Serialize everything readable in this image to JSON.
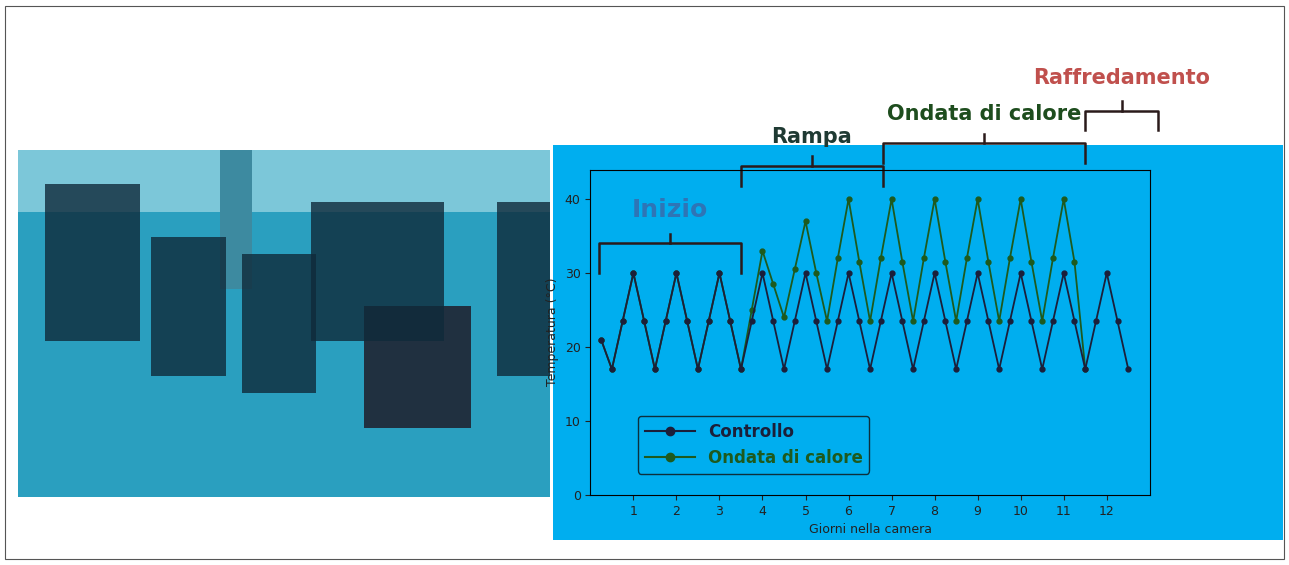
{
  "chart_data": {
    "type": "line",
    "x_label": "Giorni nella camera",
    "y_label": "Temperatura (°C)",
    "x": [
      0.25,
      0.5,
      0.75,
      1.0,
      1.25,
      1.5,
      1.75,
      2.0,
      2.25,
      2.5,
      2.75,
      3.0,
      3.25,
      3.5,
      3.75,
      4.0,
      4.25,
      4.5,
      4.75,
      5.0,
      5.25,
      5.5,
      5.75,
      6.0,
      6.25,
      6.5,
      6.75,
      7.0,
      7.25,
      7.5,
      7.75,
      8.0,
      8.25,
      8.5,
      8.75,
      9.0,
      9.25,
      9.5,
      9.75,
      10.0,
      10.25,
      10.5,
      10.75,
      11.0,
      11.25,
      11.5,
      11.75,
      12.0,
      12.25,
      12.5
    ],
    "series": [
      {
        "name": "Controllo",
        "color": "#1b1f3a",
        "marker": "o",
        "line_style": "solid",
        "values": [
          21,
          17,
          23.5,
          30,
          23.5,
          17,
          23.5,
          30,
          23.5,
          17,
          23.5,
          30,
          23.5,
          17,
          23.5,
          30,
          23.5,
          17,
          23.5,
          30,
          23.5,
          17,
          23.5,
          30,
          23.5,
          17,
          23.5,
          30,
          23.5,
          17,
          23.5,
          30,
          23.5,
          17,
          23.5,
          30,
          23.5,
          17,
          23.5,
          30,
          23.5,
          17,
          23.5,
          30,
          23.5,
          17,
          23.5,
          30,
          23.5,
          17
        ]
      },
      {
        "name": "Ondata di calore",
        "color": "#1e5a1e",
        "marker": "o",
        "line_style": "solid",
        "values": [
          21,
          17,
          23.5,
          30,
          23.5,
          17,
          23.5,
          30,
          23.5,
          17,
          23.5,
          30,
          23.5,
          17,
          25,
          33,
          28.5,
          24,
          30.5,
          37,
          30,
          23.5,
          32,
          40,
          31.5,
          23.5,
          32,
          40,
          31.5,
          23.5,
          32,
          40,
          31.5,
          23.5,
          32,
          40,
          31.5,
          23.5,
          32,
          40,
          31.5,
          23.5,
          32,
          40,
          31.5,
          17,
          null,
          null,
          null,
          null
        ]
      }
    ],
    "xlim": [
      0,
      13
    ],
    "xticks": [
      1,
      2,
      3,
      4,
      5,
      6,
      7,
      8,
      9,
      10,
      11,
      12
    ],
    "ylim": [
      0,
      44
    ],
    "yticks": [
      0,
      10,
      20,
      30,
      40
    ],
    "grid": false,
    "legend": "lower left",
    "phases": [
      {
        "label": "Inizio",
        "color": "#2e75b6",
        "start": 0.2,
        "end": 3.5
      },
      {
        "label": "Rampa",
        "color": "#1f3a33",
        "start": 3.5,
        "end": 6.8
      },
      {
        "label": "Ondata di calore",
        "color": "#1e4d1e",
        "start": 6.8,
        "end": 11.5
      },
      {
        "label": "Raffredamento",
        "color": "#c0504d",
        "start": 11.5,
        "end": 13.2
      }
    ]
  }
}
